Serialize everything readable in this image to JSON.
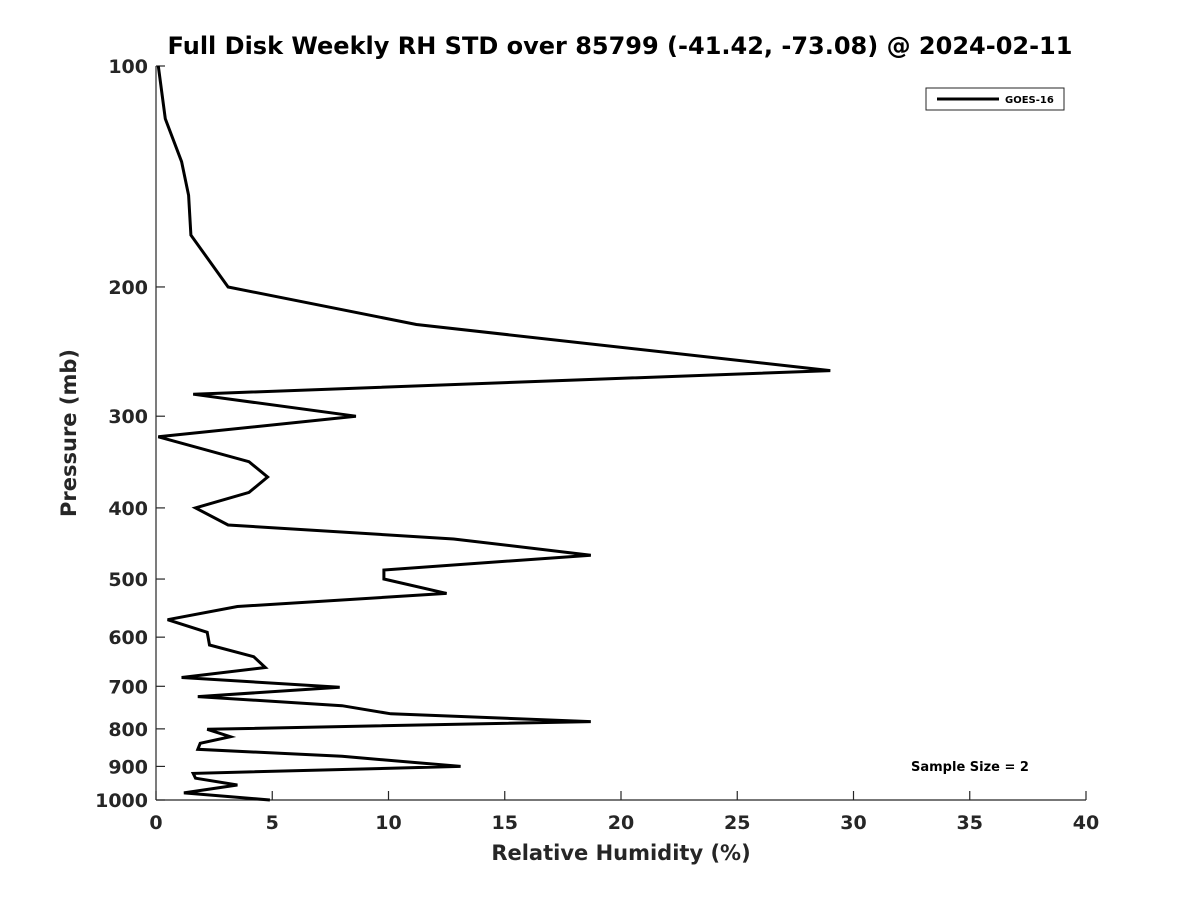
{
  "chart_data": {
    "type": "line",
    "title": "Full Disk Weekly RH STD over 85799 (-41.42, -73.08) @ 2024-02-11",
    "xlabel": "Relative Humidity (%)",
    "ylabel": "Pressure (mb)",
    "xlim": [
      0,
      40
    ],
    "ylim": [
      1000,
      100
    ],
    "yscale": "log",
    "xticks": [
      0,
      5,
      10,
      15,
      20,
      25,
      30,
      35,
      40
    ],
    "yticks": [
      100,
      200,
      300,
      400,
      500,
      600,
      700,
      800,
      900,
      1000
    ],
    "grid": false,
    "legend": {
      "position": "top-right",
      "entries": [
        "GOES-16"
      ]
    },
    "annotation": "Sample Size = 2",
    "series": [
      {
        "name": "GOES-16",
        "color": "#000000",
        "points": [
          [
            0.1,
            100
          ],
          [
            0.4,
            118
          ],
          [
            1.1,
            135
          ],
          [
            1.4,
            150
          ],
          [
            1.5,
            170
          ],
          [
            3.1,
            200
          ],
          [
            11.2,
            225
          ],
          [
            29.0,
            260
          ],
          [
            1.6,
            280
          ],
          [
            8.6,
            300
          ],
          [
            0.1,
            320
          ],
          [
            4.0,
            346
          ],
          [
            4.8,
            363
          ],
          [
            4.0,
            381
          ],
          [
            1.7,
            400
          ],
          [
            3.1,
            422
          ],
          [
            12.8,
            441
          ],
          [
            18.7,
            464
          ],
          [
            9.8,
            486
          ],
          [
            9.8,
            500
          ],
          [
            12.5,
            523
          ],
          [
            3.5,
            545
          ],
          [
            0.5,
            568
          ],
          [
            2.2,
            591
          ],
          [
            2.3,
            615
          ],
          [
            4.2,
            638
          ],
          [
            4.7,
            660
          ],
          [
            1.1,
            681
          ],
          [
            7.9,
            702
          ],
          [
            1.8,
            723
          ],
          [
            8.0,
            744
          ],
          [
            10.1,
            763
          ],
          [
            18.7,
            782
          ],
          [
            2.2,
            801
          ],
          [
            3.2,
            820
          ],
          [
            1.9,
            837
          ],
          [
            1.8,
            853
          ],
          [
            8.0,
            872
          ],
          [
            13.1,
            900
          ],
          [
            1.6,
            920
          ],
          [
            1.7,
            934
          ],
          [
            3.5,
            954
          ],
          [
            1.2,
            978
          ],
          [
            4.9,
            1000
          ]
        ]
      }
    ]
  }
}
